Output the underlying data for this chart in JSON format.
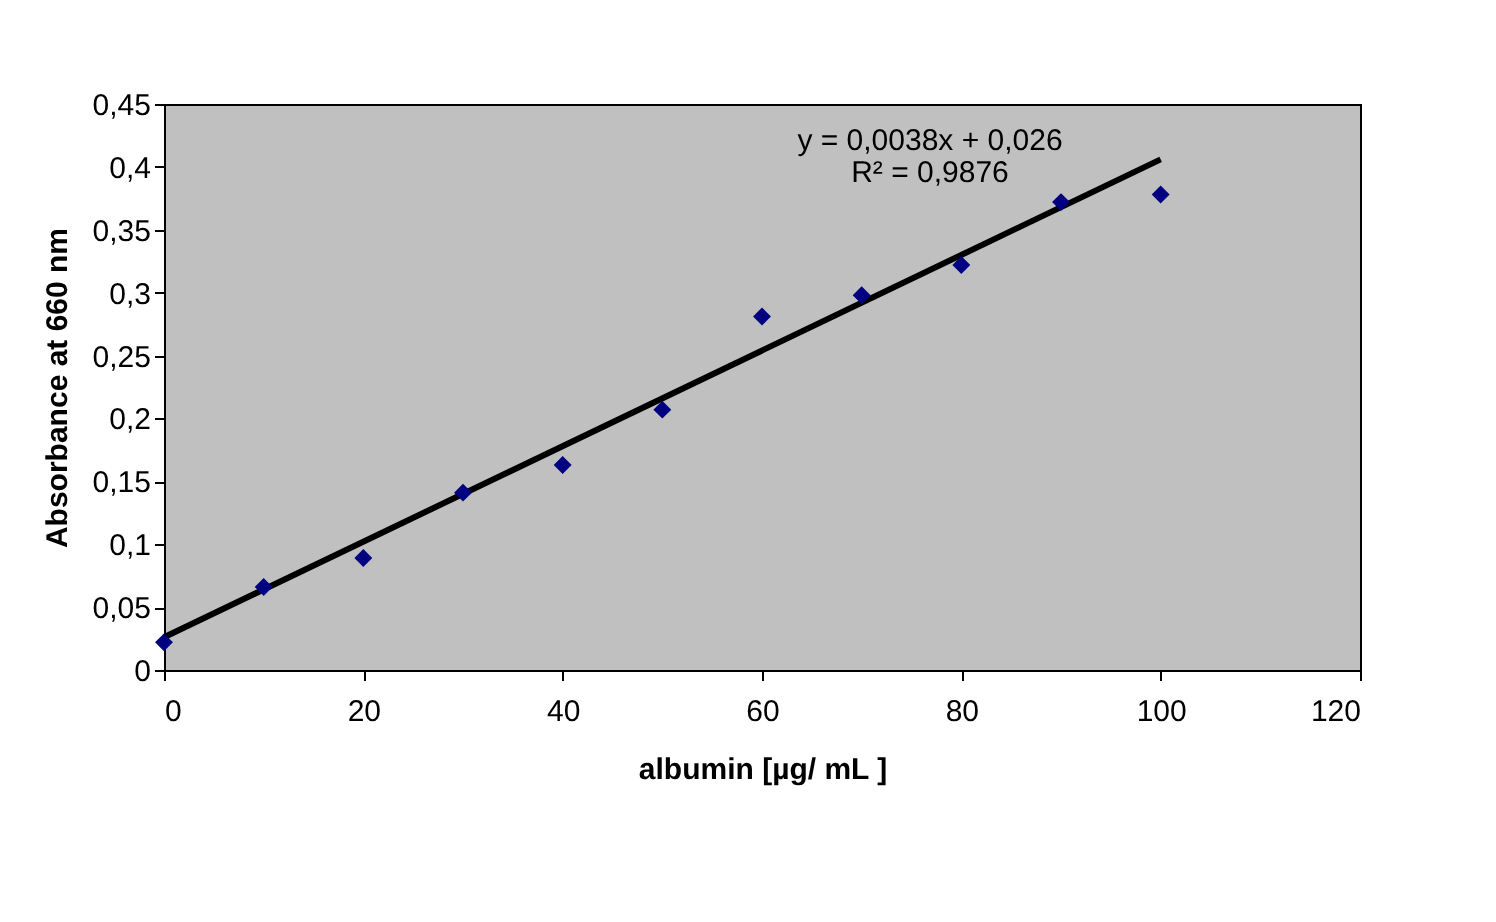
{
  "chart_data": {
    "type": "scatter",
    "xlabel": "albumin  [µg/ mL ]",
    "ylabel": "Absorbance  at 660 nm",
    "x": [
      0,
      10,
      20,
      30,
      40,
      50,
      60,
      70,
      80,
      90,
      100
    ],
    "series": [
      {
        "color": "#000080",
        "marker": "diamond",
        "values": [
          0.022,
          0.066,
          0.089,
          0.141,
          0.163,
          0.207,
          0.281,
          0.298,
          0.322,
          0.372,
          0.378
        ]
      },
      {
        "type": "line",
        "color": "#000000",
        "x": [
          0,
          100
        ],
        "values": [
          0.026,
          0.406
        ],
        "line_style": "solid"
      }
    ],
    "annotations": [
      "y = 0,0038x + 0,026",
      "R² = 0,9876"
    ],
    "xlim": [
      0,
      120
    ],
    "xticks": [
      0,
      20,
      40,
      60,
      80,
      100,
      120
    ],
    "ylim": [
      0,
      0.45
    ],
    "yticks": [
      {
        "value": 0,
        "label": "0"
      },
      {
        "value": 0.05,
        "label": "0,05"
      },
      {
        "value": 0.1,
        "label": "0,1"
      },
      {
        "value": 0.15,
        "label": "0,15"
      },
      {
        "value": 0.2,
        "label": "0,2"
      },
      {
        "value": 0.25,
        "label": "0,25"
      },
      {
        "value": 0.3,
        "label": "0,3"
      },
      {
        "value": 0.35,
        "label": "0,35"
      },
      {
        "value": 0.4,
        "label": "0,4"
      },
      {
        "value": 0.45,
        "label": "0,45"
      }
    ],
    "grid": false
  }
}
